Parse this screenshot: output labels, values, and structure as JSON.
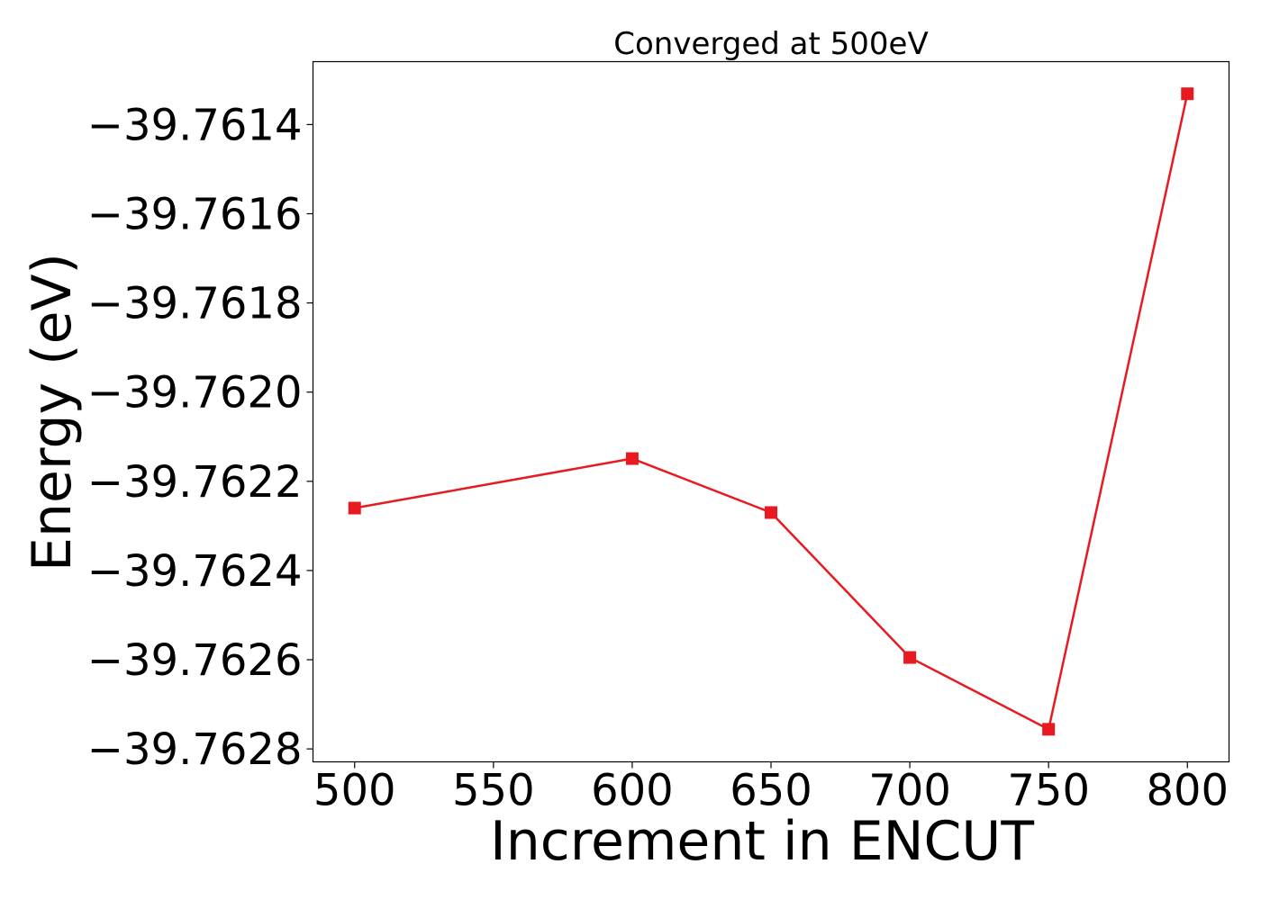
{
  "chart_data": {
    "type": "line",
    "title": "Converged at 500eV",
    "xlabel": "Increment in ENCUT",
    "ylabel": "Energy (eV)",
    "x": [
      500,
      600,
      650,
      700,
      750,
      800
    ],
    "series": [
      {
        "values": [
          -39.76226,
          -39.762149,
          -39.76227,
          -39.762595,
          -39.762756,
          -39.761331
        ],
        "color": "#e8191f",
        "marker": "square"
      }
    ],
    "xticks": [
      500,
      550,
      600,
      650,
      700,
      750,
      800
    ],
    "xtick_labels": [
      "500",
      "550",
      "600",
      "650",
      "700",
      "750",
      "800"
    ],
    "yticks": [
      -39.7614,
      -39.7616,
      -39.7618,
      -39.762,
      -39.7622,
      -39.7624,
      -39.7626,
      -39.7628
    ],
    "ytick_labels": [
      "−39.7614",
      "−39.7616",
      "−39.7618",
      "−39.7620",
      "−39.7622",
      "−39.7624",
      "−39.7626",
      "−39.7628"
    ],
    "xlim": [
      485,
      815
    ],
    "ylim": [
      -39.762829,
      -39.761259
    ],
    "grid": false,
    "legend": false
  }
}
